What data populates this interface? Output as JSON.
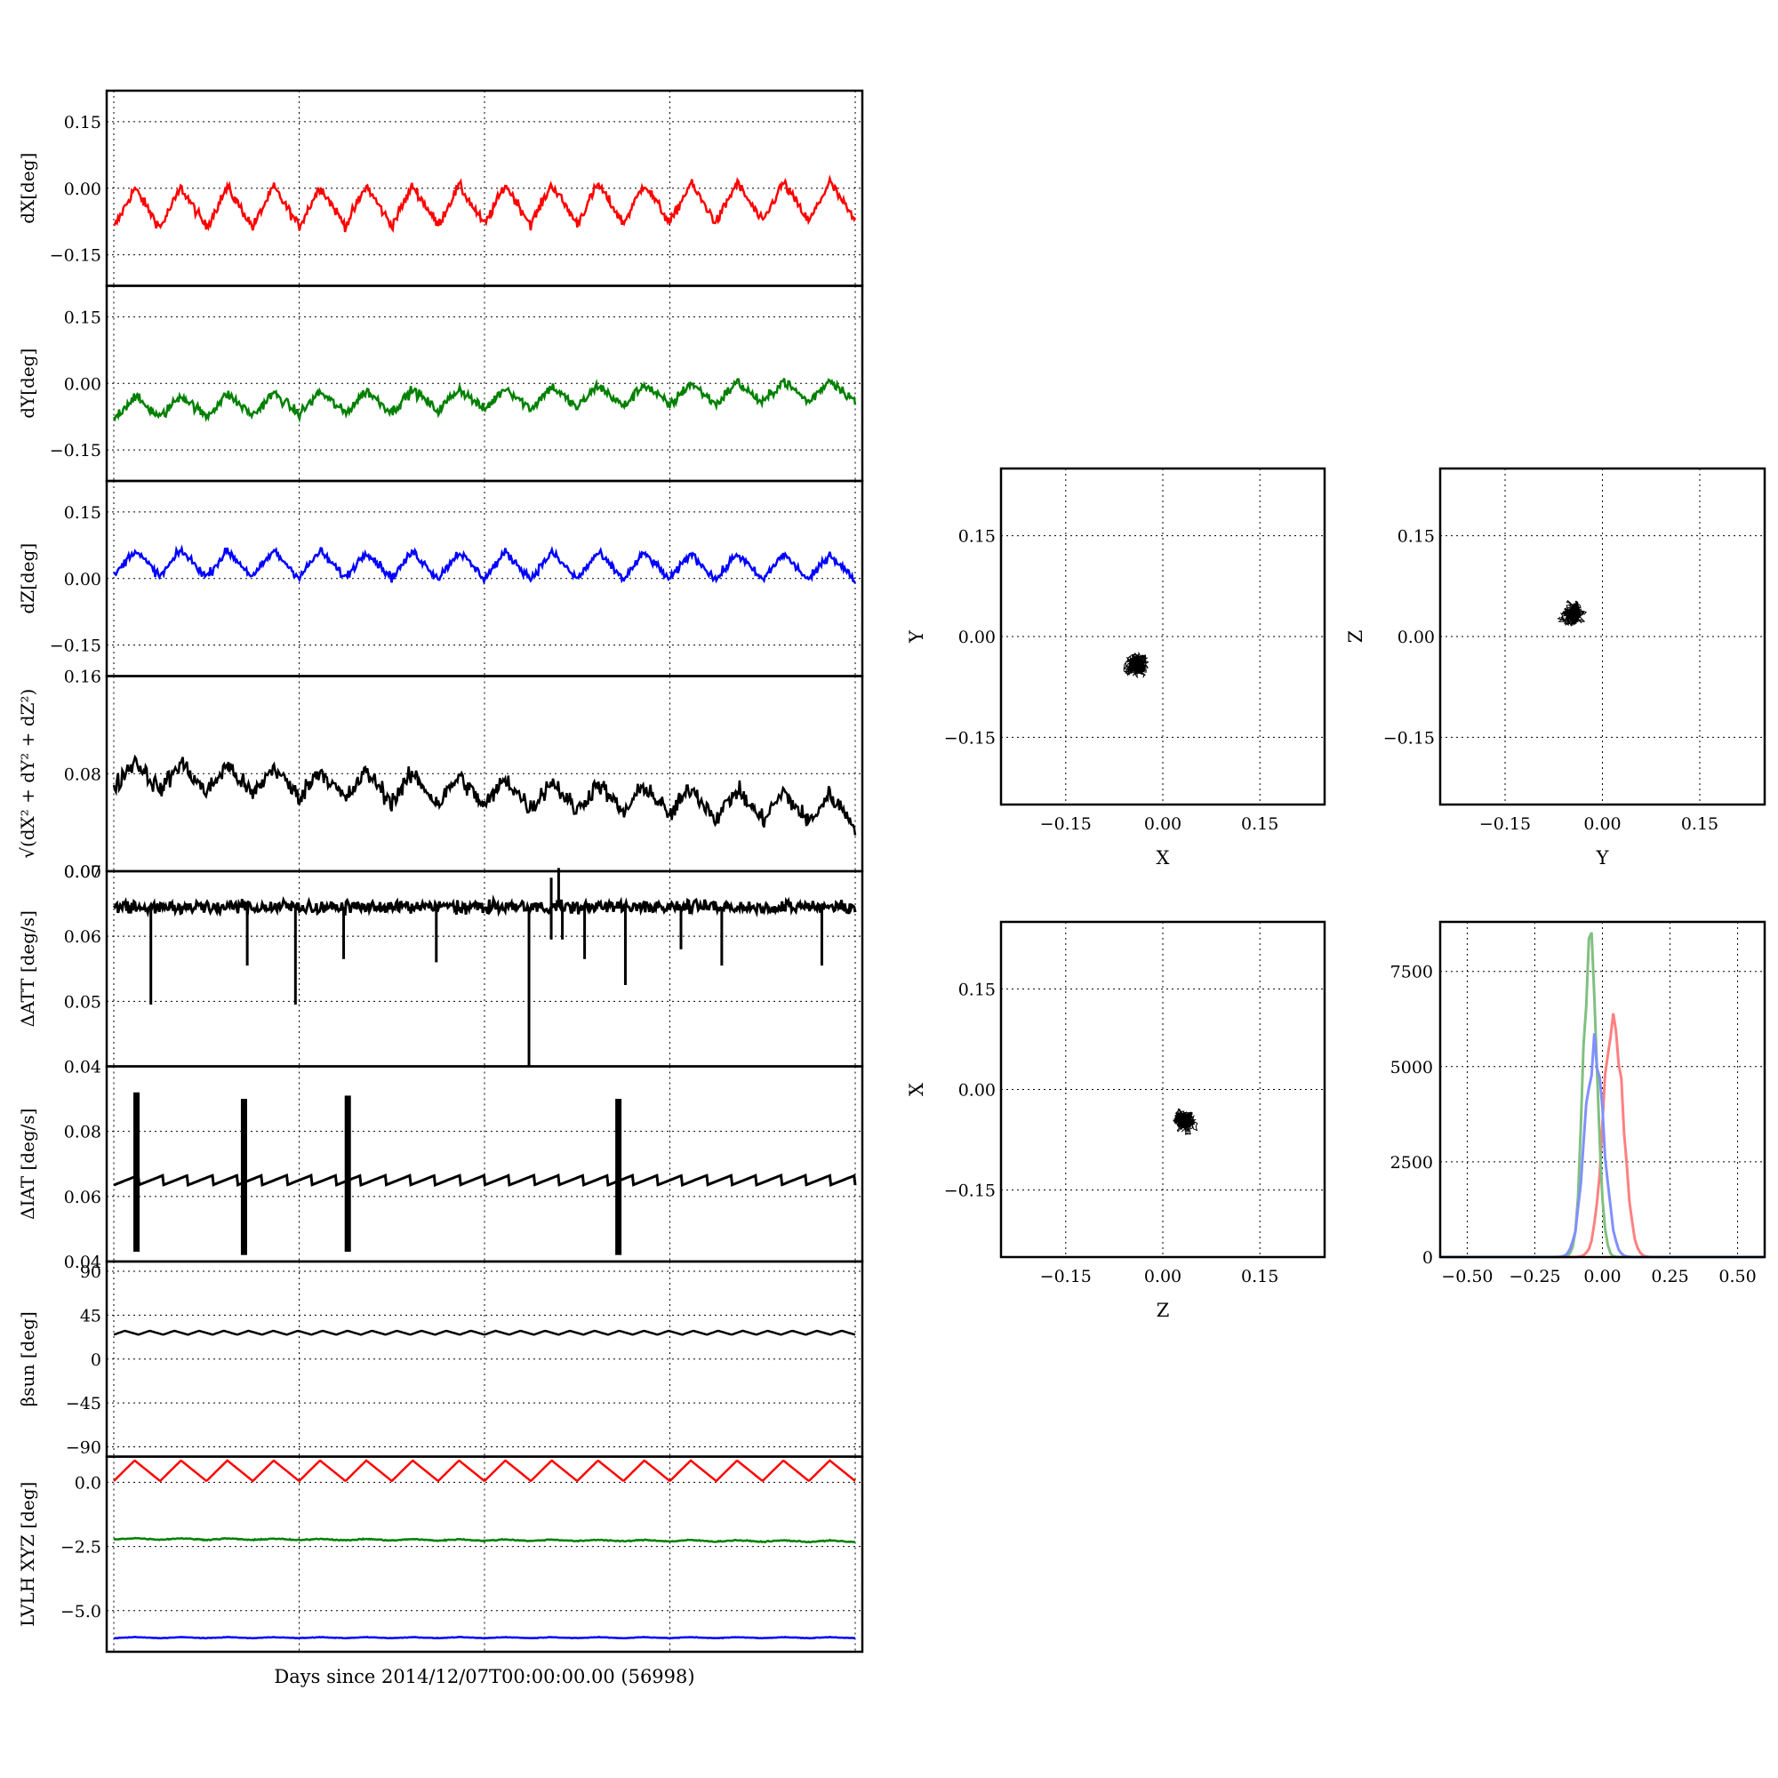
{
  "xlabel_shared": "Days since 2014/12/07T00:00:00.00 (56998)",
  "chart_data": [
    {
      "id": "dX",
      "type": "line",
      "ylabel": "dX[deg]",
      "ylim": [
        -0.22,
        0.22
      ],
      "yticks": [
        -0.15,
        0.0,
        0.15
      ],
      "ytick_labels": [
        "−0.15",
        "0.00",
        "0.15"
      ],
      "xlim": [
        0,
        1
      ],
      "grid": true,
      "series": [
        {
          "color": "#ff0000",
          "kind": "wave",
          "base": -0.045,
          "amp": 0.045,
          "cycles": 16,
          "noise": 0.012,
          "drift": 0.015,
          "values": []
        }
      ]
    },
    {
      "id": "dY",
      "type": "line",
      "ylabel": "dY[deg]",
      "ylim": [
        -0.22,
        0.22
      ],
      "yticks": [
        -0.15,
        0.0,
        0.15
      ],
      "ytick_labels": [
        "−0.15",
        "0.00",
        "0.15"
      ],
      "xlim": [
        0,
        1
      ],
      "grid": true,
      "series": [
        {
          "color": "#008000",
          "kind": "wave",
          "base": -0.055,
          "amp": 0.025,
          "cycles": 16,
          "noise": 0.012,
          "drift": 0.04,
          "values": []
        }
      ]
    },
    {
      "id": "dZ",
      "type": "line",
      "ylabel": "dZ[deg]",
      "ylim": [
        -0.22,
        0.22
      ],
      "yticks": [
        -0.15,
        0.0,
        0.15
      ],
      "ytick_labels": [
        "−0.15",
        "0.00",
        "0.15"
      ],
      "xlim": [
        0,
        1
      ],
      "grid": true,
      "series": [
        {
          "color": "#0000ff",
          "kind": "wave",
          "base": 0.035,
          "amp": 0.03,
          "cycles": 16,
          "noise": 0.01,
          "drift": -0.01,
          "values": []
        }
      ]
    },
    {
      "id": "dR",
      "type": "line",
      "ylabel": "√(dX² + dY² + dZ²)",
      "ylim": [
        0.0,
        0.16
      ],
      "yticks": [
        0.0,
        0.08,
        0.16
      ],
      "ytick_labels": [
        "0.00",
        "0.08",
        "0.16"
      ],
      "xlim": [
        0,
        1
      ],
      "grid": true,
      "series": [
        {
          "color": "#000000",
          "kind": "wave",
          "base": 0.08,
          "amp": 0.012,
          "cycles": 16,
          "noise": 0.008,
          "drift": -0.03,
          "values": []
        }
      ]
    },
    {
      "id": "dATT",
      "type": "line",
      "ylabel": "ΔATT [deg/s]",
      "ylim": [
        0.04,
        0.07
      ],
      "yticks": [
        0.04,
        0.05,
        0.06,
        0.07
      ],
      "ytick_labels": [
        "0.04",
        "0.05",
        "0.06",
        "0.07"
      ],
      "xlim": [
        0,
        1
      ],
      "grid": true,
      "series": [
        {
          "color": "#000000",
          "kind": "band",
          "base": 0.0645,
          "amp": 0.0008,
          "noise": 0.0005,
          "values": []
        }
      ],
      "spikes": [
        {
          "x": 0.05,
          "y": 0.0495
        },
        {
          "x": 0.18,
          "y": 0.0555
        },
        {
          "x": 0.245,
          "y": 0.0495
        },
        {
          "x": 0.31,
          "y": 0.0565
        },
        {
          "x": 0.435,
          "y": 0.056
        },
        {
          "x": 0.56,
          "y": 0.04
        },
        {
          "x": 0.59,
          "y": 0.0595
        },
        {
          "x": 0.605,
          "y": 0.0595
        },
        {
          "x": 0.635,
          "y": 0.0565
        },
        {
          "x": 0.69,
          "y": 0.0525
        },
        {
          "x": 0.765,
          "y": 0.058
        },
        {
          "x": 0.82,
          "y": 0.0555
        },
        {
          "x": 0.955,
          "y": 0.0555
        }
      ],
      "upspikes": [
        {
          "x": 0.59,
          "y": 0.069
        },
        {
          "x": 0.6,
          "y": 0.0705
        }
      ]
    },
    {
      "id": "dIAT",
      "type": "line",
      "ylabel": "ΔIAT [deg/s]",
      "ylim": [
        0.04,
        0.1
      ],
      "yticks": [
        0.04,
        0.06,
        0.08
      ],
      "ytick_labels": [
        "0.04",
        "0.06",
        "0.08"
      ],
      "xlim": [
        0,
        1
      ],
      "grid": true,
      "series": [
        {
          "color": "#000000",
          "kind": "saw",
          "base": 0.0635,
          "amp": 0.003,
          "cycles": 30,
          "values": []
        }
      ],
      "bursts": [
        {
          "x": 0.03,
          "lo": 0.043,
          "hi": 0.092
        },
        {
          "x": 0.175,
          "lo": 0.042,
          "hi": 0.09
        },
        {
          "x": 0.315,
          "lo": 0.043,
          "hi": 0.091
        },
        {
          "x": 0.68,
          "lo": 0.042,
          "hi": 0.09
        }
      ]
    },
    {
      "id": "beta",
      "type": "line",
      "ylabel": "βsun [deg]",
      "ylim": [
        -100,
        100
      ],
      "yticks": [
        -90,
        -45,
        0,
        45,
        90
      ],
      "ytick_labels": [
        "−90",
        "−45",
        "0",
        "45",
        "90"
      ],
      "xlim": [
        0,
        1
      ],
      "grid": true,
      "series": [
        {
          "color": "#000000",
          "kind": "wave",
          "base": 27,
          "amp": 2,
          "cycles": 30,
          "noise": 0,
          "drift": 0,
          "values": []
        }
      ]
    },
    {
      "id": "lvlh",
      "type": "line",
      "ylabel": "LVLH XYZ [deg]",
      "ylim": [
        -6.6,
        1.0
      ],
      "yticks": [
        -5.0,
        -2.5,
        0.0
      ],
      "ytick_labels": [
        "−5.0",
        "−2.5",
        "0.0"
      ],
      "xlim": [
        0,
        1
      ],
      "grid": true,
      "series": [
        {
          "color": "#ff0000",
          "kind": "wave",
          "base": 0.45,
          "amp": 0.4,
          "cycles": 16,
          "noise": 0,
          "drift": 0,
          "values": []
        },
        {
          "color": "#008000",
          "kind": "wave",
          "base": -2.2,
          "amp": 0.03,
          "cycles": 16,
          "noise": 0.02,
          "drift": -0.1,
          "values": []
        },
        {
          "color": "#0000ff",
          "kind": "wave",
          "base": -6.05,
          "amp": 0.02,
          "cycles": 16,
          "noise": 0.01,
          "drift": 0,
          "values": []
        }
      ]
    },
    {
      "id": "scatXY",
      "type": "scatter",
      "xlabel": "X",
      "ylabel": "Y",
      "xlim": [
        -0.25,
        0.25
      ],
      "ylim": [
        -0.25,
        0.25
      ],
      "ticks": [
        -0.15,
        0.0,
        0.15
      ],
      "tick_labels": [
        "−0.15",
        "0.00",
        "0.15"
      ],
      "center": [
        -0.04,
        -0.04
      ],
      "spread": [
        0.035,
        0.03
      ],
      "grid": true
    },
    {
      "id": "scatYZ",
      "type": "scatter",
      "xlabel": "Y",
      "ylabel": "Z",
      "xlim": [
        -0.25,
        0.25
      ],
      "ylim": [
        -0.25,
        0.25
      ],
      "ticks": [
        -0.15,
        0.0,
        0.15
      ],
      "tick_labels": [
        "−0.15",
        "0.00",
        "0.15"
      ],
      "center": [
        -0.045,
        0.035
      ],
      "spread": [
        0.028,
        0.03
      ],
      "grid": true
    },
    {
      "id": "scatZX",
      "type": "scatter",
      "xlabel": "Z",
      "ylabel": "X",
      "xlim": [
        -0.25,
        0.25
      ],
      "ylim": [
        -0.25,
        0.25
      ],
      "ticks": [
        -0.15,
        0.0,
        0.15
      ],
      "tick_labels": [
        "−0.15",
        "0.00",
        "0.15"
      ],
      "center": [
        0.035,
        -0.045
      ],
      "spread": [
        0.032,
        0.035
      ],
      "grid": true
    },
    {
      "id": "hist",
      "type": "line",
      "xlabel": "",
      "ylabel": "",
      "xlim": [
        -0.6,
        0.6
      ],
      "ylim": [
        0,
        8800
      ],
      "xticks": [
        -0.5,
        -0.25,
        0.0,
        0.25,
        0.5
      ],
      "xtick_labels": [
        "−0.50",
        "−0.25",
        "0.00",
        "0.25",
        "0.50"
      ],
      "yticks": [
        0,
        2500,
        5000,
        7500
      ],
      "ytick_labels": [
        "0",
        "2500",
        "5000",
        "7500"
      ],
      "grid": true,
      "series": [
        {
          "color": "#ff8080",
          "center": 0.04,
          "width": 0.035,
          "peak": 6300
        },
        {
          "color": "#80c080",
          "center": -0.045,
          "width": 0.025,
          "peak": 8400
        },
        {
          "color": "#8090ff",
          "center": -0.03,
          "width": 0.035,
          "peak": 5400
        }
      ]
    }
  ]
}
